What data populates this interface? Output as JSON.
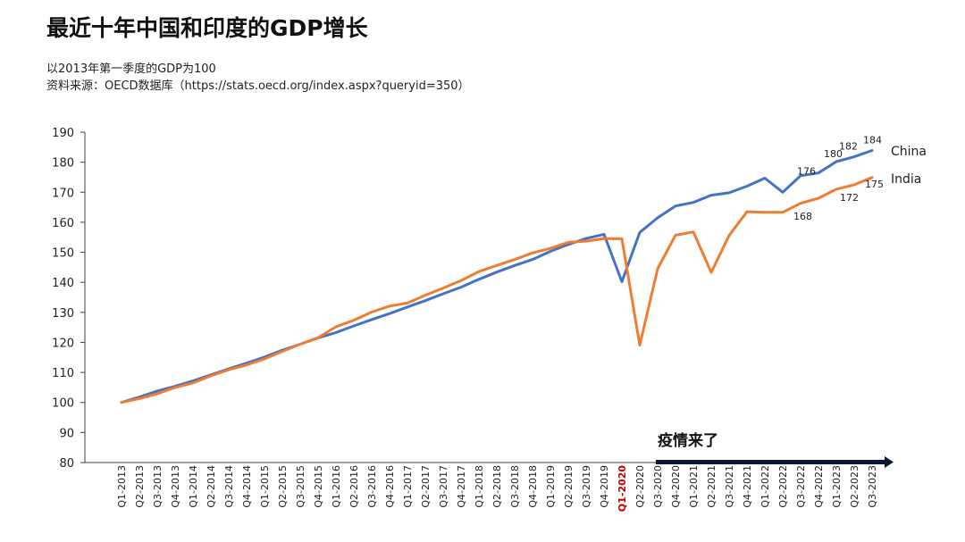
{
  "title": "最近十年中国和印度的GDP增长",
  "subtitle": "以2013年第一季度的GDP为100",
  "source": "资料来源：OECD数据库（https://stats.oecd.org/index.aspx?queryid=350）",
  "chart_data": {
    "type": "line",
    "ylim": [
      80,
      190
    ],
    "yticks": [
      80,
      90,
      100,
      110,
      120,
      130,
      140,
      150,
      160,
      170,
      180,
      190
    ],
    "categories": [
      "Q1-2013",
      "Q2-2013",
      "Q3-2013",
      "Q4-2013",
      "Q1-2014",
      "Q2-2014",
      "Q3-2014",
      "Q4-2014",
      "Q1-2015",
      "Q2-2015",
      "Q3-2015",
      "Q4-2015",
      "Q1-2016",
      "Q2-2016",
      "Q3-2016",
      "Q4-2016",
      "Q1-2017",
      "Q2-2017",
      "Q3-2017",
      "Q4-2017",
      "Q1-2018",
      "Q2-2018",
      "Q3-2018",
      "Q4-2018",
      "Q1-2019",
      "Q2-2019",
      "Q3-2019",
      "Q4-2019",
      "Q1-2020",
      "Q2-2020",
      "Q3-2020",
      "Q4-2020",
      "Q1-2021",
      "Q2-2021",
      "Q3-2021",
      "Q4-2021",
      "Q1-2022",
      "Q2-2022",
      "Q3-2022",
      "Q4-2022",
      "Q1-2023",
      "Q2-2023",
      "Q3-2023"
    ],
    "highlight_category": "Q1-2020",
    "series": [
      {
        "name": "China",
        "color": "#4472C4",
        "values": [
          100,
          101.8,
          103.8,
          105.4,
          107.2,
          109.2,
          111.2,
          113.1,
          115.1,
          117.4,
          119.4,
          121.5,
          123.3,
          125.5,
          127.6,
          129.6,
          131.8,
          133.9,
          136.2,
          138.4,
          141.0,
          143.4,
          145.6,
          147.6,
          150.3,
          152.6,
          154.6,
          156.0,
          140.2,
          156.6,
          161.5,
          165.4,
          166.6,
          169.0,
          169.8,
          172.0,
          174.7,
          170.0,
          175.5,
          176.4,
          180.2,
          181.8,
          183.9
        ],
        "labels": [
          {
            "index": 39,
            "text": "176"
          },
          {
            "index": 40,
            "text": "180"
          },
          {
            "index": 41,
            "text": "182"
          },
          {
            "index": 42,
            "text": "184"
          }
        ]
      },
      {
        "name": "India",
        "color": "#ED7D31",
        "values": [
          100,
          101.3,
          102.9,
          105.0,
          106.5,
          108.9,
          110.9,
          112.5,
          114.5,
          117.0,
          119.4,
          121.6,
          125.2,
          127.4,
          130.1,
          132.1,
          133.1,
          135.7,
          138.1,
          140.6,
          143.6,
          145.6,
          147.6,
          149.8,
          151.3,
          153.3,
          153.7,
          154.6,
          154.5,
          119.1,
          144.5,
          155.7,
          156.8,
          143.3,
          155.6,
          163.5,
          163.3,
          163.3,
          166.3,
          168.0,
          171.0,
          172.5,
          174.9
        ],
        "labels": [
          {
            "index": 39,
            "text": "168"
          },
          {
            "index": 41,
            "text": "172"
          },
          {
            "index": 42,
            "text": "175"
          }
        ]
      }
    ],
    "annotation": {
      "text": "疫情来了",
      "start_category": "Q3-2020"
    }
  }
}
